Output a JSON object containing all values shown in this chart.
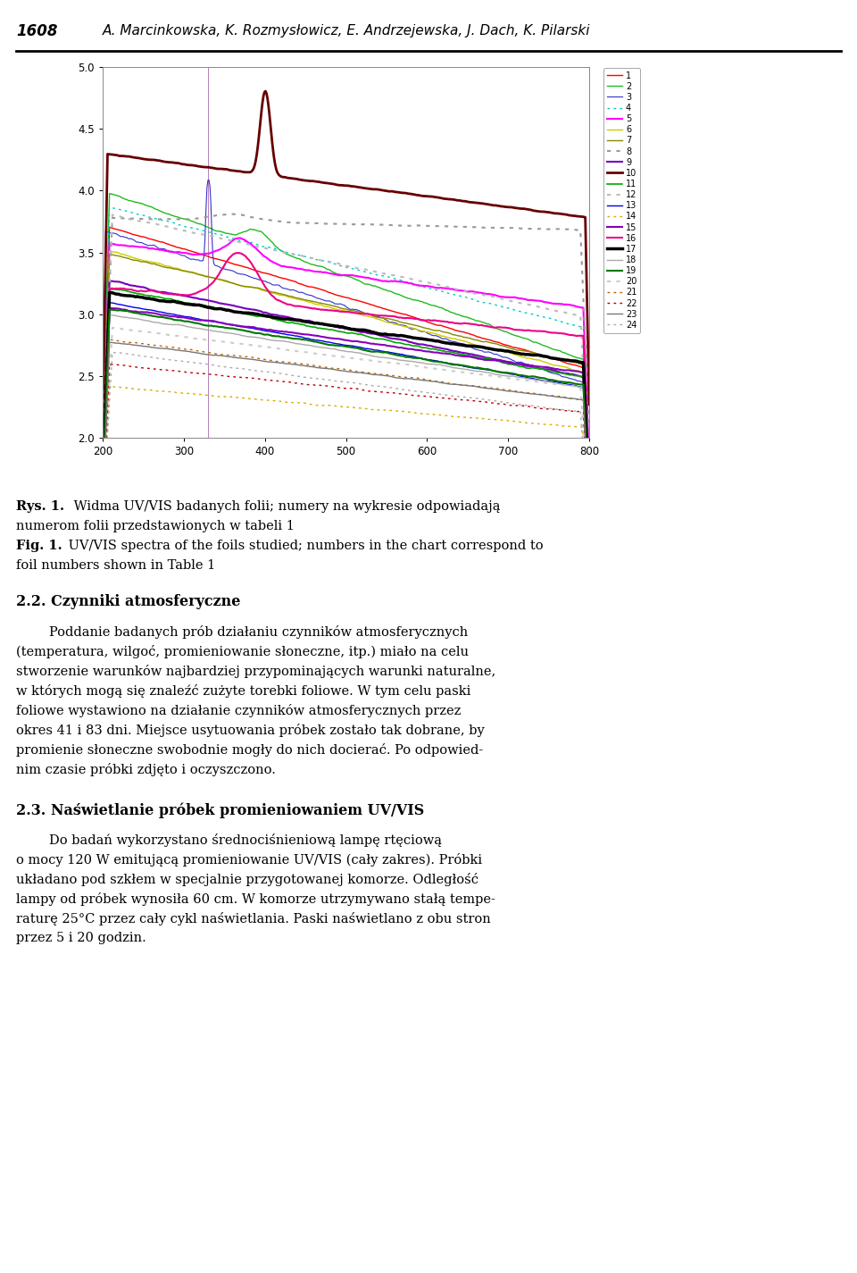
{
  "header_num": "1608",
  "header_authors": "A. Marcinkowska, K. Rozmysłowicz, E. Andrzejewska, J. Dach, K. Pilarski",
  "xlim": [
    200,
    800
  ],
  "ylim": [
    2.0,
    5.0
  ],
  "xticks": [
    200,
    300,
    400,
    500,
    600,
    700,
    800
  ],
  "yticks": [
    2.0,
    2.5,
    3.0,
    3.5,
    4.0,
    4.5,
    5.0
  ],
  "series": [
    {
      "id": 1,
      "color": "#ff0000",
      "linestyle": "solid",
      "linewidth": 1.0
    },
    {
      "id": 2,
      "color": "#22bb22",
      "linestyle": "solid",
      "linewidth": 1.0
    },
    {
      "id": 3,
      "color": "#3333cc",
      "linestyle": "solid",
      "linewidth": 0.8
    },
    {
      "id": 4,
      "color": "#00cccc",
      "linestyle": "dotted",
      "linewidth": 1.0
    },
    {
      "id": 5,
      "color": "#ff00ff",
      "linestyle": "solid",
      "linewidth": 1.5
    },
    {
      "id": 6,
      "color": "#cccc00",
      "linestyle": "solid",
      "linewidth": 1.0
    },
    {
      "id": 7,
      "color": "#888800",
      "linestyle": "solid",
      "linewidth": 1.0
    },
    {
      "id": 8,
      "color": "#999999",
      "linestyle": "dotted",
      "linewidth": 1.5
    },
    {
      "id": 9,
      "color": "#7700bb",
      "linestyle": "solid",
      "linewidth": 1.5
    },
    {
      "id": 10,
      "color": "#660000",
      "linestyle": "solid",
      "linewidth": 2.0
    },
    {
      "id": 11,
      "color": "#00aa00",
      "linestyle": "solid",
      "linewidth": 1.2
    },
    {
      "id": 12,
      "color": "#bbbbbb",
      "linestyle": "dotted",
      "linewidth": 1.5
    },
    {
      "id": 13,
      "color": "#0000ee",
      "linestyle": "solid",
      "linewidth": 1.0
    },
    {
      "id": 14,
      "color": "#ddaa00",
      "linestyle": "dotted",
      "linewidth": 1.0
    },
    {
      "id": 15,
      "color": "#8800bb",
      "linestyle": "solid",
      "linewidth": 1.5
    },
    {
      "id": 16,
      "color": "#ee0088",
      "linestyle": "solid",
      "linewidth": 1.5
    },
    {
      "id": 17,
      "color": "#000000",
      "linestyle": "solid",
      "linewidth": 2.5
    },
    {
      "id": 18,
      "color": "#aaaaaa",
      "linestyle": "solid",
      "linewidth": 1.0
    },
    {
      "id": 19,
      "color": "#007700",
      "linestyle": "solid",
      "linewidth": 1.5
    },
    {
      "id": 20,
      "color": "#cccccc",
      "linestyle": "dotted",
      "linewidth": 1.5
    },
    {
      "id": 21,
      "color": "#bb6600",
      "linestyle": "dotted",
      "linewidth": 1.0
    },
    {
      "id": 22,
      "color": "#bb0000",
      "linestyle": "dotted",
      "linewidth": 1.0
    },
    {
      "id": 23,
      "color": "#777777",
      "linestyle": "solid",
      "linewidth": 1.0
    },
    {
      "id": 24,
      "color": "#aaaaaa",
      "linestyle": "dotted",
      "linewidth": 1.0
    }
  ],
  "caption_rys": "Rys. 1.",
  "caption_rys_text": "Widma UV/VIS badanych folii; numery na wykresie odpowiadają",
  "caption_rys_text2": "numerom folii przedstawionych w tabeli 1",
  "caption_fig": "Fig. 1.",
  "caption_fig_text": "UV/VIS spectra of the foils studied; numbers in the chart correspond to",
  "caption_fig_text2": "foil numbers shown in Table 1",
  "section22": "2.2. Czynniki atmosferyczne",
  "para1": [
    "        Poddanie badanych prób działaniu czynników atmosferycznych",
    "(temperatura, wilgoć, promieniowanie słoneczne, itp.) miało na celu",
    "stworzenie warunków najbardziej przypominających warunki naturalne,",
    "w których mogą się znaleźć zużyte torebki foliowe. W tym celu paski",
    "foliowe wystawiono na działanie czynników atmosferycznych przez",
    "okres 41 i 83 dni. Miejsce usytuowania próbek zostało tak dobrane, by",
    "promienie słoneczne swobodnie mogły do nich docierać. Po odpowied-",
    "nim czasie próbki zdjęto i oczyszczono."
  ],
  "section23": "2.3. Naświetlanie próbek promieniowaniem UV/VIS",
  "para2": [
    "        Do badań wykorzystano średnociśnieniową lampę rtęciową",
    "o mocy 120 W emitującą promieniowanie UV/VIS (cały zakres). Próbki",
    "układano pod szkłem w specjalnie przygotowanej komorze. Odległość",
    "lampy od próbek wynosiła 60 cm. W komorze utrzymywano stałą tempe-",
    "raturę 25°C przez cały cykl naświetlania. Paski naświetlano z obu stron",
    "przez 5 i 20 godzin."
  ]
}
